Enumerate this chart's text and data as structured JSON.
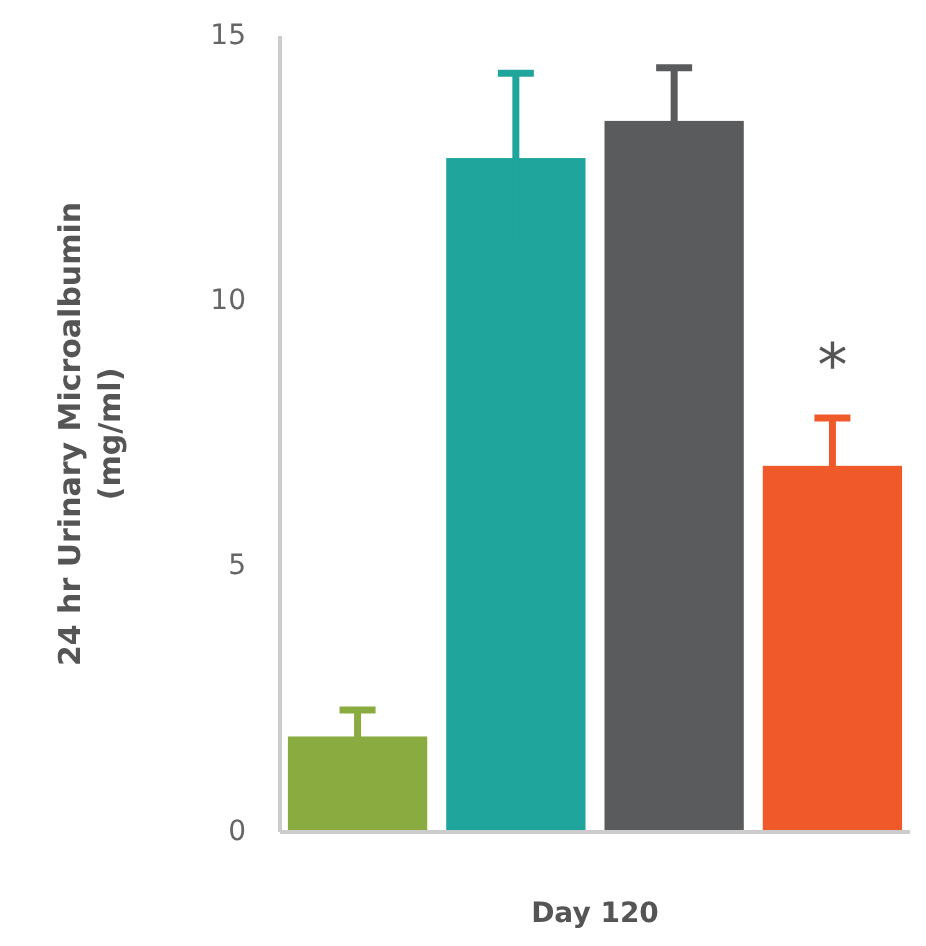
{
  "chart_data": {
    "type": "bar",
    "xlabel": "Day 120",
    "ylabel": "24 hr Urinary Microalbumin\n(mg/ml)",
    "categories": [
      null,
      null,
      null,
      null
    ],
    "values": [
      1.8,
      12.7,
      13.4,
      6.9
    ],
    "colors": [
      "#8aab3f",
      "#1fa59c",
      "#5a5b5d",
      "#f05a2a"
    ],
    "errors": [
      0.5,
      1.6,
      1.0,
      0.9
    ],
    "ylim": [
      0,
      15
    ],
    "yticks": [
      0,
      5,
      10,
      15
    ],
    "grid": false,
    "annotations": [
      "*"
    ]
  }
}
